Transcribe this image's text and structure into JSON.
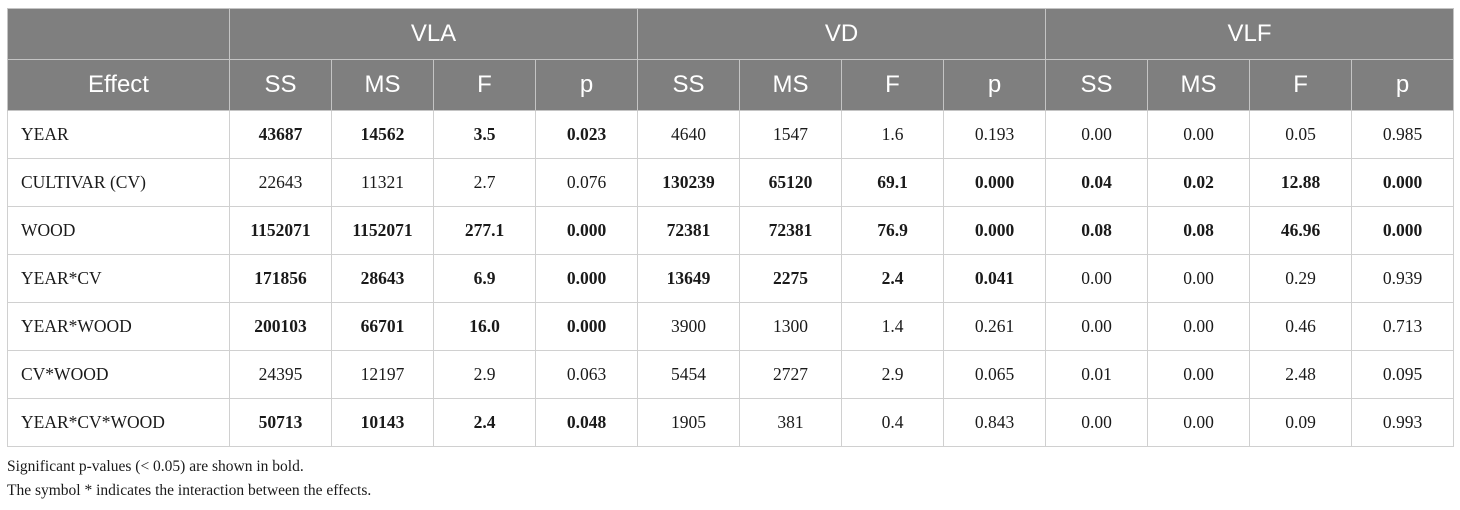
{
  "table": {
    "groups": [
      "VLA",
      "VD",
      "VLF"
    ],
    "effect_header": "Effect",
    "sub_headers": [
      "SS",
      "MS",
      "F",
      "p",
      "SS",
      "MS",
      "F",
      "p",
      "SS",
      "MS",
      "F",
      "p"
    ],
    "rows": [
      {
        "effect": "YEAR",
        "values": [
          "43687",
          "14562",
          "3.5",
          "0.023",
          "4640",
          "1547",
          "1.6",
          "0.193",
          "0.00",
          "0.00",
          "0.05",
          "0.985"
        ],
        "bold": [
          true,
          true,
          true,
          true,
          false,
          false,
          false,
          false,
          false,
          false,
          false,
          false
        ]
      },
      {
        "effect": "CULTIVAR (CV)",
        "values": [
          "22643",
          "11321",
          "2.7",
          "0.076",
          "130239",
          "65120",
          "69.1",
          "0.000",
          "0.04",
          "0.02",
          "12.88",
          "0.000"
        ],
        "bold": [
          false,
          false,
          false,
          false,
          true,
          true,
          true,
          true,
          true,
          true,
          true,
          true
        ]
      },
      {
        "effect": "WOOD",
        "values": [
          "1152071",
          "1152071",
          "277.1",
          "0.000",
          "72381",
          "72381",
          "76.9",
          "0.000",
          "0.08",
          "0.08",
          "46.96",
          "0.000"
        ],
        "bold": [
          true,
          true,
          true,
          true,
          true,
          true,
          true,
          true,
          true,
          true,
          true,
          true
        ]
      },
      {
        "effect": "YEAR*CV",
        "values": [
          "171856",
          "28643",
          "6.9",
          "0.000",
          "13649",
          "2275",
          "2.4",
          "0.041",
          "0.00",
          "0.00",
          "0.29",
          "0.939"
        ],
        "bold": [
          true,
          true,
          true,
          true,
          true,
          true,
          true,
          true,
          false,
          false,
          false,
          false
        ]
      },
      {
        "effect": "YEAR*WOOD",
        "values": [
          "200103",
          "66701",
          "16.0",
          "0.000",
          "3900",
          "1300",
          "1.4",
          "0.261",
          "0.00",
          "0.00",
          "0.46",
          "0.713"
        ],
        "bold": [
          true,
          true,
          true,
          true,
          false,
          false,
          false,
          false,
          false,
          false,
          false,
          false
        ]
      },
      {
        "effect": "CV*WOOD",
        "values": [
          "24395",
          "12197",
          "2.9",
          "0.063",
          "5454",
          "2727",
          "2.9",
          "0.065",
          "0.01",
          "0.00",
          "2.48",
          "0.095"
        ],
        "bold": [
          false,
          false,
          false,
          false,
          false,
          false,
          false,
          false,
          false,
          false,
          false,
          false
        ]
      },
      {
        "effect": "YEAR*CV*WOOD",
        "values": [
          "50713",
          "10143",
          "2.4",
          "0.048",
          "1905",
          "381",
          "0.4",
          "0.843",
          "0.00",
          "0.00",
          "0.09",
          "0.993"
        ],
        "bold": [
          true,
          true,
          true,
          true,
          false,
          false,
          false,
          false,
          false,
          false,
          false,
          false
        ]
      }
    ]
  },
  "notes": [
    "Significant p-values (< 0.05) are shown in bold.",
    "The symbol * indicates the interaction between the effects."
  ],
  "colors": {
    "header_bg": "#7f7f7f",
    "header_text": "#ffffff",
    "grid": "#d0d0d0"
  }
}
